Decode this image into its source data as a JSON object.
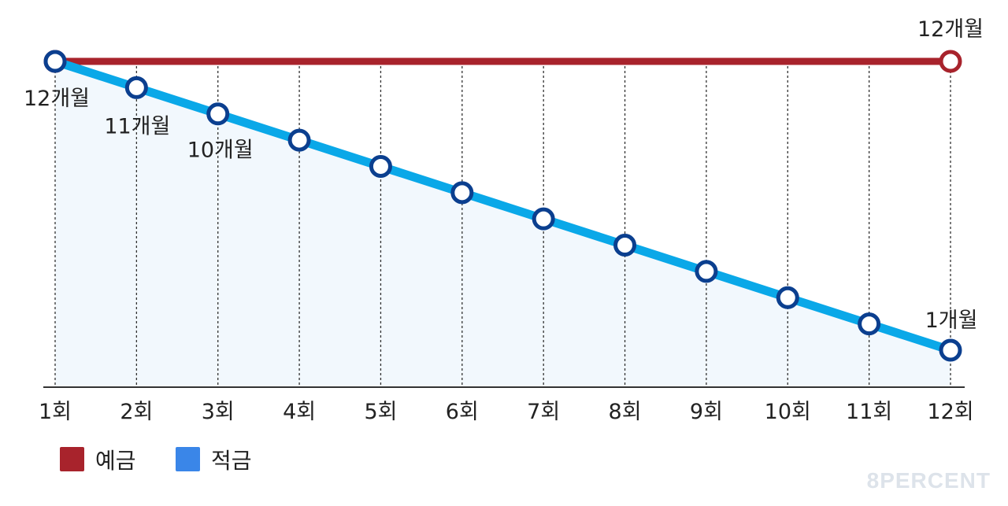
{
  "chart_data": {
    "type": "line",
    "categories": [
      "1회",
      "2회",
      "3회",
      "4회",
      "5회",
      "6회",
      "7회",
      "8회",
      "9회",
      "10회",
      "11회",
      "12회"
    ],
    "series": [
      {
        "name": "예금",
        "values": [
          12,
          12,
          12,
          12,
          12,
          12,
          12,
          12,
          12,
          12,
          12,
          12
        ],
        "color": "#a8232c",
        "markers": [
          0,
          11
        ]
      },
      {
        "name": "적금",
        "values": [
          12,
          11,
          10,
          9,
          8,
          7,
          6,
          5,
          4,
          3,
          2,
          1
        ],
        "color": "#0aa8e8",
        "marker_color": "#0b3f8f",
        "markers": [
          0,
          1,
          2,
          3,
          4,
          5,
          6,
          7,
          8,
          9,
          10,
          11
        ]
      }
    ],
    "annotations": [
      {
        "text": "12개월",
        "series": 1,
        "index": 0
      },
      {
        "text": "11개월",
        "series": 1,
        "index": 1
      },
      {
        "text": "10개월",
        "series": 1,
        "index": 2
      },
      {
        "text": "1개월",
        "series": 1,
        "index": 11
      },
      {
        "text": "12개월",
        "series": 0,
        "index": 11
      }
    ],
    "grid": "vertical-dashed",
    "legend_position": "bottom-left",
    "legend_colors": [
      "#a8232c",
      "#3a86e8"
    ]
  },
  "watermark": "8PERCENT"
}
